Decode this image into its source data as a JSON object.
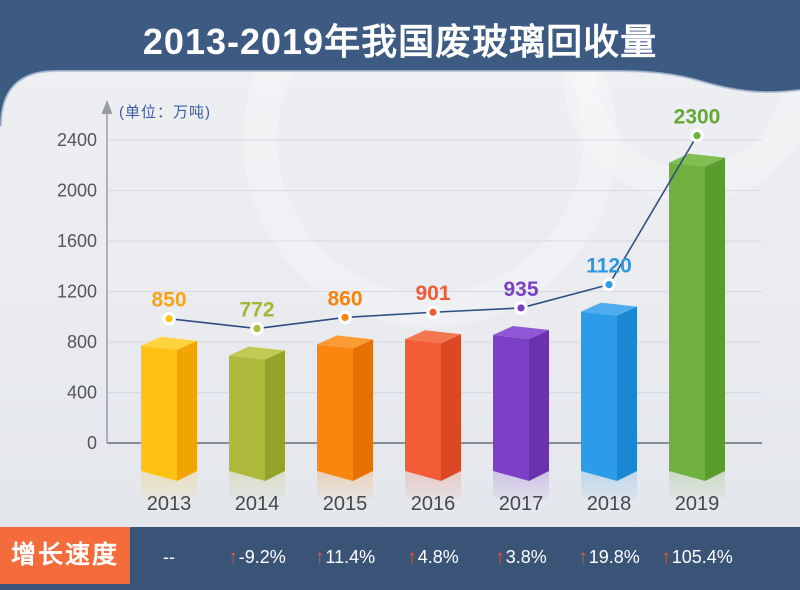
{
  "title": "2013-2019年我国废玻璃回收量",
  "unit_label": "(单位：万吨)",
  "growth_row": {
    "label": "增长速度",
    "cells": [
      {
        "year": "2013",
        "text": "--",
        "arrow": false
      },
      {
        "year": "2014",
        "text": "-9.2%",
        "arrow": true
      },
      {
        "year": "2015",
        "text": "11.4%",
        "arrow": true
      },
      {
        "year": "2016",
        "text": "4.8%",
        "arrow": true
      },
      {
        "year": "2017",
        "text": "3.8%",
        "arrow": true
      },
      {
        "year": "2018",
        "text": "19.8%",
        "arrow": true
      },
      {
        "year": "2019",
        "text": "105.4%",
        "arrow": true
      }
    ]
  },
  "colors": {
    "header_bg": "#3C5A82",
    "header_edge": "#AEBDD3",
    "bottom_bar_bg": "#3A5478",
    "growth_label_bg": "#F46B3C",
    "growth_arrow": "#F2572B",
    "line": "#2F4E82",
    "dot_ring": "#FFFFFF",
    "axis": "#9A9DA4",
    "baseline": "#868A92",
    "gridline": "#D7DAE1",
    "tick_text": "#54565C",
    "year_text": "#46484E",
    "unit_text": "#3E5C9E",
    "title_text": "#FFFFFF",
    "growth_text": "#FFFFFF"
  },
  "chart_data": {
    "type": "bar",
    "overlay": "line",
    "title": "2013-2019年我国废玻璃回收量",
    "unit": "万吨",
    "categories": [
      "2013",
      "2014",
      "2015",
      "2016",
      "2017",
      "2018",
      "2019"
    ],
    "values": [
      850,
      772,
      860,
      901,
      935,
      1120,
      2300
    ],
    "growth_pct": [
      "--",
      "-9.2%",
      "11.4%",
      "4.8%",
      "3.8%",
      "19.8%",
      "105.4%"
    ],
    "ylim": [
      0,
      2400
    ],
    "yticks": [
      0,
      400,
      800,
      1200,
      1600,
      2000,
      2400
    ],
    "grid": true,
    "legend": "none",
    "bar_styles": [
      {
        "category": "2013",
        "front": "#FFC113",
        "side": "#F0A502",
        "top": "#FFD23F",
        "label": "#F6A41A"
      },
      {
        "category": "2014",
        "front": "#AFBA3C",
        "side": "#94A32C",
        "top": "#BFC954",
        "label": "#A8B534"
      },
      {
        "category": "2015",
        "front": "#F8860F",
        "side": "#E67102",
        "top": "#FA9C33",
        "label": "#F6830D"
      },
      {
        "category": "2016",
        "front": "#F25C36",
        "side": "#DC4823",
        "top": "#F5774F",
        "label": "#F15B34"
      },
      {
        "category": "2017",
        "front": "#7C40C8",
        "side": "#6933AD",
        "top": "#8F57D5",
        "label": "#7B3FC6"
      },
      {
        "category": "2018",
        "front": "#2D9CE8",
        "side": "#1B86D4",
        "top": "#4EADEF",
        "label": "#2C96DF"
      },
      {
        "category": "2019",
        "front": "#6FB03E",
        "side": "#5B9C31",
        "top": "#81BE54",
        "label": "#66A838"
      }
    ]
  }
}
